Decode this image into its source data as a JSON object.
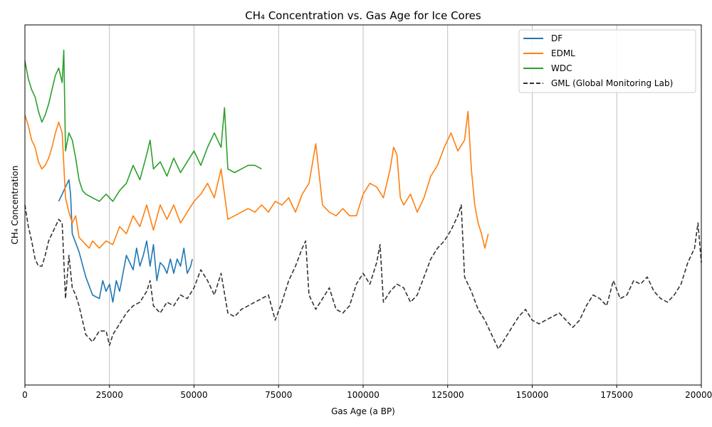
{
  "chart_data": {
    "type": "line",
    "title": "CH₄ Concentration vs. Gas Age for Ice Cores",
    "xlabel": "Gas Age (a BP)",
    "ylabel": "CH₄ Concentration",
    "xlim": [
      0,
      200000
    ],
    "ylim": [
      0,
      100
    ],
    "x_ticks": [
      0,
      25000,
      50000,
      75000,
      100000,
      125000,
      150000,
      175000,
      200000
    ],
    "x_tick_labels": [
      "0",
      "25000",
      "50000",
      "75000",
      "100000",
      "125000",
      "150000",
      "175000",
      "200000"
    ],
    "y_ticks_shown": false,
    "grid": "x-only",
    "legend_position": "top-right",
    "series": [
      {
        "name": "DF",
        "color": "#1f77b4",
        "dash": "solid",
        "points": [
          [
            10000,
            51
          ],
          [
            11000,
            53
          ],
          [
            12000,
            55
          ],
          [
            13000,
            57
          ],
          [
            13500,
            53
          ],
          [
            14000,
            42
          ],
          [
            16000,
            37
          ],
          [
            18000,
            30
          ],
          [
            20000,
            25
          ],
          [
            22000,
            24
          ],
          [
            23000,
            29
          ],
          [
            24000,
            26
          ],
          [
            25000,
            28
          ],
          [
            26000,
            23
          ],
          [
            27000,
            29
          ],
          [
            28000,
            26
          ],
          [
            30000,
            36
          ],
          [
            31000,
            34
          ],
          [
            32000,
            32
          ],
          [
            33000,
            38
          ],
          [
            34000,
            33
          ],
          [
            35000,
            36
          ],
          [
            36000,
            40
          ],
          [
            37000,
            33
          ],
          [
            38000,
            39
          ],
          [
            39000,
            29
          ],
          [
            40000,
            34
          ],
          [
            41000,
            33
          ],
          [
            42000,
            31
          ],
          [
            43000,
            35
          ],
          [
            44000,
            31
          ],
          [
            45000,
            35
          ],
          [
            46000,
            33
          ],
          [
            47000,
            38
          ],
          [
            48000,
            31
          ],
          [
            49000,
            33
          ],
          [
            49500,
            35
          ]
        ]
      },
      {
        "name": "EDML",
        "color": "#ff7f0e",
        "dash": "solid",
        "points": [
          [
            0,
            75
          ],
          [
            1000,
            72
          ],
          [
            2000,
            68
          ],
          [
            3000,
            66
          ],
          [
            4000,
            62
          ],
          [
            5000,
            60
          ],
          [
            6000,
            61
          ],
          [
            7000,
            63
          ],
          [
            8000,
            66
          ],
          [
            9000,
            70
          ],
          [
            10000,
            73
          ],
          [
            11000,
            70
          ],
          [
            12000,
            52
          ],
          [
            13000,
            48
          ],
          [
            14000,
            45
          ],
          [
            15000,
            47
          ],
          [
            16000,
            41
          ],
          [
            17000,
            40
          ],
          [
            18000,
            39
          ],
          [
            19000,
            38
          ],
          [
            20000,
            40
          ],
          [
            22000,
            38
          ],
          [
            24000,
            40
          ],
          [
            26000,
            39
          ],
          [
            28000,
            44
          ],
          [
            30000,
            42
          ],
          [
            32000,
            47
          ],
          [
            34000,
            44
          ],
          [
            36000,
            50
          ],
          [
            38000,
            43
          ],
          [
            40000,
            50
          ],
          [
            42000,
            46
          ],
          [
            44000,
            50
          ],
          [
            46000,
            45
          ],
          [
            48000,
            48
          ],
          [
            50000,
            51
          ],
          [
            52000,
            53
          ],
          [
            54000,
            56
          ],
          [
            56000,
            52
          ],
          [
            58000,
            60
          ],
          [
            60000,
            46
          ],
          [
            62000,
            47
          ],
          [
            64000,
            48
          ],
          [
            66000,
            49
          ],
          [
            68000,
            48
          ],
          [
            70000,
            50
          ],
          [
            72000,
            48
          ],
          [
            74000,
            51
          ],
          [
            76000,
            50
          ],
          [
            78000,
            52
          ],
          [
            80000,
            48
          ],
          [
            82000,
            53
          ],
          [
            84000,
            56
          ],
          [
            86000,
            67
          ],
          [
            88000,
            50
          ],
          [
            90000,
            48
          ],
          [
            92000,
            47
          ],
          [
            94000,
            49
          ],
          [
            96000,
            47
          ],
          [
            98000,
            47
          ],
          [
            100000,
            53
          ],
          [
            102000,
            56
          ],
          [
            104000,
            55
          ],
          [
            106000,
            52
          ],
          [
            108000,
            60
          ],
          [
            109000,
            66
          ],
          [
            110000,
            64
          ],
          [
            111000,
            52
          ],
          [
            112000,
            50
          ],
          [
            114000,
            53
          ],
          [
            116000,
            48
          ],
          [
            118000,
            52
          ],
          [
            120000,
            58
          ],
          [
            122000,
            61
          ],
          [
            124000,
            66
          ],
          [
            126000,
            70
          ],
          [
            128000,
            65
          ],
          [
            130000,
            68
          ],
          [
            131000,
            76
          ],
          [
            132000,
            60
          ],
          [
            133000,
            50
          ],
          [
            134000,
            45
          ],
          [
            135000,
            42
          ],
          [
            136000,
            38
          ],
          [
            137000,
            42
          ]
        ]
      },
      {
        "name": "WDC",
        "color": "#2ca02c",
        "dash": "solid",
        "points": [
          [
            0,
            90
          ],
          [
            1000,
            85
          ],
          [
            2000,
            82
          ],
          [
            3000,
            80
          ],
          [
            4000,
            76
          ],
          [
            5000,
            73
          ],
          [
            6000,
            75
          ],
          [
            7000,
            78
          ],
          [
            8000,
            82
          ],
          [
            9000,
            86
          ],
          [
            10000,
            88
          ],
          [
            11000,
            84
          ],
          [
            11500,
            93
          ],
          [
            12000,
            65
          ],
          [
            13000,
            70
          ],
          [
            14000,
            68
          ],
          [
            15000,
            63
          ],
          [
            16000,
            57
          ],
          [
            17000,
            54
          ],
          [
            18000,
            53
          ],
          [
            20000,
            52
          ],
          [
            22000,
            51
          ],
          [
            24000,
            53
          ],
          [
            26000,
            51
          ],
          [
            28000,
            54
          ],
          [
            30000,
            56
          ],
          [
            32000,
            61
          ],
          [
            34000,
            57
          ],
          [
            36000,
            64
          ],
          [
            37000,
            68
          ],
          [
            38000,
            60
          ],
          [
            40000,
            62
          ],
          [
            42000,
            58
          ],
          [
            44000,
            63
          ],
          [
            46000,
            59
          ],
          [
            48000,
            62
          ],
          [
            50000,
            65
          ],
          [
            52000,
            61
          ],
          [
            54000,
            66
          ],
          [
            56000,
            70
          ],
          [
            58000,
            66
          ],
          [
            59000,
            77
          ],
          [
            60000,
            60
          ],
          [
            62000,
            59
          ],
          [
            64000,
            60
          ],
          [
            66000,
            61
          ],
          [
            68000,
            61
          ],
          [
            70000,
            60
          ]
        ]
      },
      {
        "name": "GML (Global Monitoring Lab)",
        "color": "#333333",
        "dash": "dashed",
        "points": [
          [
            0,
            50
          ],
          [
            1000,
            44
          ],
          [
            2000,
            40
          ],
          [
            3000,
            35
          ],
          [
            4000,
            33
          ],
          [
            5000,
            33
          ],
          [
            6000,
            36
          ],
          [
            7000,
            40
          ],
          [
            8000,
            42
          ],
          [
            9000,
            44
          ],
          [
            10000,
            46
          ],
          [
            11000,
            45
          ],
          [
            12000,
            24
          ],
          [
            13000,
            36
          ],
          [
            14000,
            27
          ],
          [
            15000,
            25
          ],
          [
            16000,
            22
          ],
          [
            18000,
            14
          ],
          [
            20000,
            12
          ],
          [
            22000,
            15
          ],
          [
            24000,
            15
          ],
          [
            25000,
            11
          ],
          [
            26000,
            14
          ],
          [
            28000,
            17
          ],
          [
            30000,
            20
          ],
          [
            32000,
            22
          ],
          [
            34000,
            23
          ],
          [
            36000,
            26
          ],
          [
            37000,
            29
          ],
          [
            38000,
            22
          ],
          [
            40000,
            20
          ],
          [
            42000,
            23
          ],
          [
            44000,
            22
          ],
          [
            46000,
            25
          ],
          [
            48000,
            24
          ],
          [
            50000,
            27
          ],
          [
            52000,
            32
          ],
          [
            54000,
            29
          ],
          [
            56000,
            25
          ],
          [
            58000,
            31
          ],
          [
            60000,
            20
          ],
          [
            62000,
            19
          ],
          [
            64000,
            21
          ],
          [
            66000,
            22
          ],
          [
            68000,
            23
          ],
          [
            70000,
            24
          ],
          [
            72000,
            25
          ],
          [
            74000,
            18
          ],
          [
            76000,
            23
          ],
          [
            78000,
            29
          ],
          [
            80000,
            33
          ],
          [
            82000,
            38
          ],
          [
            83000,
            40
          ],
          [
            84000,
            25
          ],
          [
            86000,
            21
          ],
          [
            88000,
            24
          ],
          [
            90000,
            27
          ],
          [
            92000,
            21
          ],
          [
            94000,
            20
          ],
          [
            96000,
            22
          ],
          [
            98000,
            28
          ],
          [
            100000,
            31
          ],
          [
            102000,
            28
          ],
          [
            104000,
            34
          ],
          [
            105000,
            39
          ],
          [
            106000,
            23
          ],
          [
            108000,
            26
          ],
          [
            110000,
            28
          ],
          [
            112000,
            27
          ],
          [
            114000,
            23
          ],
          [
            116000,
            25
          ],
          [
            118000,
            30
          ],
          [
            120000,
            35
          ],
          [
            122000,
            38
          ],
          [
            124000,
            40
          ],
          [
            126000,
            43
          ],
          [
            128000,
            47
          ],
          [
            129000,
            50
          ],
          [
            130000,
            30
          ],
          [
            132000,
            26
          ],
          [
            134000,
            21
          ],
          [
            136000,
            18
          ],
          [
            138000,
            14
          ],
          [
            140000,
            10
          ],
          [
            142000,
            13
          ],
          [
            144000,
            16
          ],
          [
            146000,
            19
          ],
          [
            148000,
            21
          ],
          [
            150000,
            18
          ],
          [
            152000,
            17
          ],
          [
            154000,
            18
          ],
          [
            156000,
            19
          ],
          [
            158000,
            20
          ],
          [
            160000,
            18
          ],
          [
            162000,
            16
          ],
          [
            164000,
            18
          ],
          [
            166000,
            22
          ],
          [
            168000,
            25
          ],
          [
            170000,
            24
          ],
          [
            172000,
            22
          ],
          [
            174000,
            29
          ],
          [
            176000,
            24
          ],
          [
            178000,
            25
          ],
          [
            180000,
            29
          ],
          [
            182000,
            28
          ],
          [
            184000,
            30
          ],
          [
            186000,
            26
          ],
          [
            188000,
            24
          ],
          [
            190000,
            23
          ],
          [
            192000,
            25
          ],
          [
            194000,
            28
          ],
          [
            196000,
            34
          ],
          [
            198000,
            38
          ],
          [
            199000,
            45
          ],
          [
            200000,
            34
          ]
        ]
      }
    ]
  }
}
